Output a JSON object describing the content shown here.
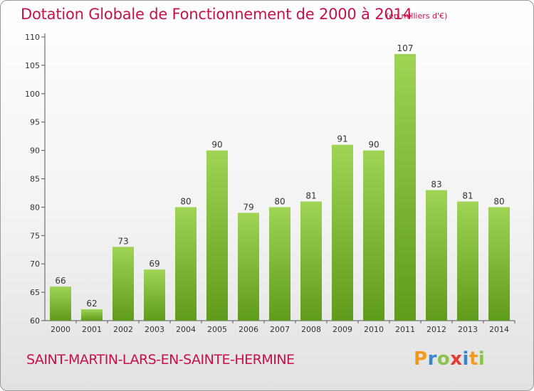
{
  "chart_data": {
    "type": "bar",
    "title": "Dotation Globale de Fonctionnement de 2000 à 2014",
    "subtitle": "(en milliers d'€)",
    "categories": [
      "2000",
      "2001",
      "2002",
      "2003",
      "2004",
      "2005",
      "2006",
      "2007",
      "2008",
      "2009",
      "2010",
      "2011",
      "2012",
      "2013",
      "2014"
    ],
    "values": [
      66,
      62,
      73,
      69,
      80,
      90,
      79,
      80,
      81,
      91,
      90,
      107,
      83,
      81,
      80
    ],
    "ylim": [
      60,
      110
    ],
    "yticks": [
      60,
      65,
      70,
      75,
      80,
      85,
      90,
      95,
      100,
      105,
      110
    ],
    "xlabel": "",
    "ylabel": "",
    "grid": false,
    "bar_color": "#7ec232",
    "bar_color_light": "#9fd455",
    "bar_color_dark": "#5f9b1c"
  },
  "commune": "SAINT-MARTIN-LARS-EN-SAINTE-HERMINE",
  "logo": {
    "letters": [
      "P",
      "r",
      "o",
      "x",
      "i",
      "t",
      "i"
    ],
    "colors": [
      "#f39a1e",
      "#3a86c8",
      "#8bc34a",
      "#e53935",
      "#3a86c8",
      "#f39a1e",
      "#8bc34a"
    ]
  },
  "accent_color": "#c8104a"
}
